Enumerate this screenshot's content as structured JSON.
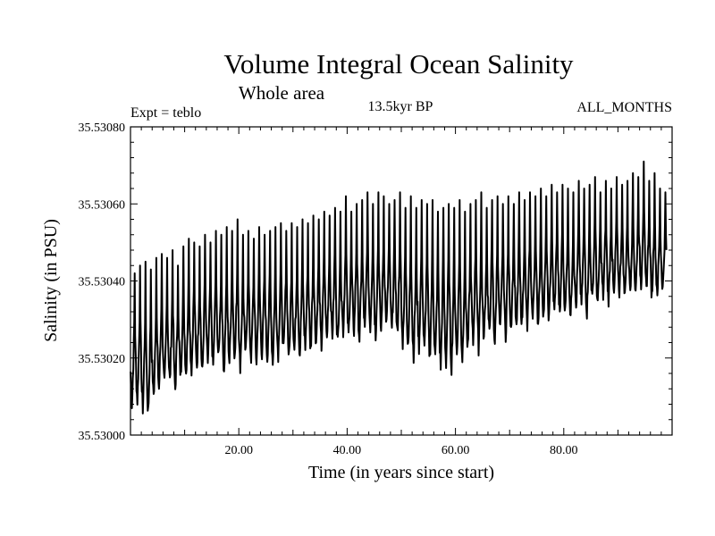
{
  "chart_data": {
    "type": "line",
    "title": "Volume Integral Ocean Salinity",
    "subtitle": "Whole area",
    "experiment": "Expt = teblo",
    "period": "13.5kyr BP",
    "months": "ALL_MONTHS",
    "xlabel": "Time (in years since start)",
    "ylabel": "Salinity (in PSU)",
    "xlim": [
      0,
      100
    ],
    "ylim": [
      35.53,
      35.5308
    ],
    "x_ticks": [
      "20.00",
      "40.00",
      "60.00",
      "80.00"
    ],
    "y_ticks": [
      "35.53000",
      "35.53020",
      "35.53040",
      "35.53060",
      "35.53080"
    ],
    "grid": false,
    "series": [
      {
        "name": "Salinity",
        "description": "Monthly values with strong seasonal cycle; annual minima/maxima",
        "years": [
          1,
          2,
          3,
          4,
          5,
          6,
          7,
          8,
          9,
          10,
          11,
          12,
          13,
          14,
          15,
          16,
          17,
          18,
          19,
          20,
          21,
          22,
          23,
          24,
          25,
          26,
          27,
          28,
          29,
          30,
          31,
          32,
          33,
          34,
          35,
          36,
          37,
          38,
          39,
          40,
          41,
          42,
          43,
          44,
          45,
          46,
          47,
          48,
          49,
          50,
          51,
          52,
          53,
          54,
          55,
          56,
          57,
          58,
          59,
          60,
          61,
          62,
          63,
          64,
          65,
          66,
          67,
          68,
          69,
          70,
          71,
          72,
          73,
          74,
          75,
          76,
          77,
          78,
          79,
          80,
          81,
          82,
          83,
          84,
          85,
          86,
          87,
          88,
          89,
          90,
          91,
          92,
          93,
          94,
          95,
          96,
          97,
          98,
          99
        ],
        "annual_max": [
          35.53042,
          35.53044,
          35.53045,
          35.53043,
          35.53046,
          35.53047,
          35.53046,
          35.53048,
          35.53044,
          35.53049,
          35.53051,
          35.5305,
          35.53049,
          35.53052,
          35.5305,
          35.53053,
          35.53052,
          35.53054,
          35.53053,
          35.53056,
          35.53052,
          35.53053,
          35.53051,
          35.53054,
          35.53052,
          35.53053,
          35.53054,
          35.53055,
          35.53053,
          35.53055,
          35.53054,
          35.53056,
          35.53055,
          35.53057,
          35.53056,
          35.53058,
          35.53057,
          35.53059,
          35.53058,
          35.53062,
          35.53058,
          35.5306,
          35.53061,
          35.53063,
          35.5306,
          35.53063,
          35.53062,
          35.5306,
          35.53061,
          35.53063,
          35.53059,
          35.53062,
          35.53059,
          35.53061,
          35.5306,
          35.53061,
          35.53058,
          35.53059,
          35.5306,
          35.53059,
          35.53061,
          35.53058,
          35.5306,
          35.53061,
          35.53063,
          35.53059,
          35.53061,
          35.53062,
          35.5306,
          35.53062,
          35.5306,
          35.53063,
          35.53061,
          35.53063,
          35.53062,
          35.53064,
          35.53062,
          35.53065,
          35.53063,
          35.53065,
          35.53064,
          35.53063,
          35.53066,
          35.53064,
          35.53065,
          35.53067,
          35.53063,
          35.53066,
          35.53064,
          35.53067,
          35.53065,
          35.53066,
          35.53068,
          35.53067,
          35.53071,
          35.53066,
          35.53068,
          35.53064,
          35.53063
        ],
        "annual_min": [
          35.53008,
          35.53009,
          35.53007,
          35.53006,
          35.5301,
          35.53012,
          35.53013,
          35.53014,
          35.53012,
          35.53015,
          35.53016,
          35.53017,
          35.53018,
          35.53016,
          35.53019,
          35.53018,
          35.5302,
          35.53017,
          35.53019,
          35.5302,
          35.53018,
          35.53021,
          35.5302,
          35.53019,
          35.53021,
          35.5302,
          35.53019,
          35.53021,
          35.53022,
          35.5302,
          35.53022,
          35.53021,
          35.53023,
          35.53022,
          35.53024,
          35.53023,
          35.53025,
          35.53026,
          35.53024,
          35.53027,
          35.53026,
          35.53027,
          35.53025,
          35.53027,
          35.53028,
          35.53026,
          35.53027,
          35.53029,
          35.53027,
          35.53026,
          35.53024,
          35.53022,
          35.53021,
          35.53023,
          35.53022,
          35.5302,
          35.5302,
          35.53018,
          35.53019,
          35.53018,
          35.53021,
          35.5302,
          35.53022,
          35.53024,
          35.53023,
          35.53025,
          35.53026,
          35.53024,
          35.53027,
          35.53026,
          35.53028,
          35.53027,
          35.53029,
          35.53028,
          35.5303,
          35.53029,
          35.53031,
          35.5303,
          35.53032,
          35.53031,
          35.53032,
          35.53031,
          35.53033,
          35.53034,
          35.53032,
          35.53035,
          35.53034,
          35.53036,
          35.53035,
          35.53036,
          35.53037,
          35.53036,
          35.53038,
          35.53037,
          35.53039,
          35.53038,
          35.53036,
          35.53037,
          35.53038
        ]
      }
    ]
  }
}
